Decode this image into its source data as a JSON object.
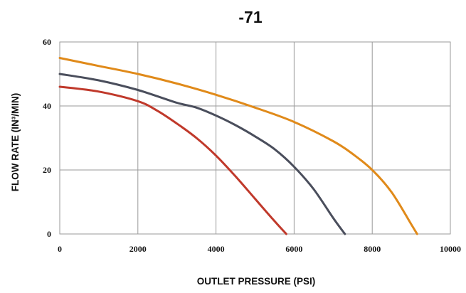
{
  "chart_data": {
    "type": "line",
    "title": "-71",
    "xlabel": "OUTLET PRESSURE (PSI)",
    "ylabel": "FLOW RATE (IN³/MIN)",
    "xlim": [
      0,
      10000
    ],
    "ylim": [
      0,
      60
    ],
    "xticks": [
      "0",
      "2000",
      "4000",
      "6000",
      "8000",
      "10000"
    ],
    "yticks": [
      "0",
      "20",
      "40",
      "60"
    ],
    "grid": true,
    "legend": "none",
    "series": [
      {
        "color": "#e08a1a",
        "x": [
          0,
          1000,
          2000,
          3000,
          4000,
          5000,
          6000,
          7000,
          7500,
          8000,
          8500,
          9000,
          9150
        ],
        "y": [
          55,
          52.5,
          50,
          47,
          43.5,
          39.5,
          35,
          29,
          25,
          20,
          13,
          3,
          0
        ]
      },
      {
        "color": "#4a4e5c",
        "x": [
          0,
          1000,
          2000,
          3000,
          3500,
          4000,
          4500,
          5000,
          5500,
          6000,
          6500,
          7000,
          7300
        ],
        "y": [
          50,
          48,
          45,
          41,
          39.5,
          37,
          34,
          30.5,
          26.5,
          21,
          14,
          5,
          0
        ]
      },
      {
        "color": "#c0392b",
        "x": [
          0,
          1000,
          2000,
          2500,
          3000,
          3500,
          4000,
          4500,
          5000,
          5500,
          5800
        ],
        "y": [
          46,
          44.5,
          41.5,
          38.5,
          34.5,
          30,
          24.5,
          18,
          11,
          4,
          0
        ]
      }
    ]
  }
}
